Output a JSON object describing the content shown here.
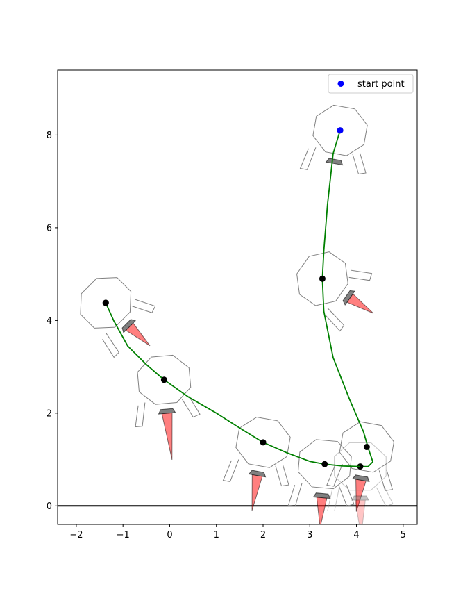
{
  "chart_data": {
    "type": "line",
    "title": "",
    "xlabel": "",
    "ylabel": "",
    "xlim": [
      -2.4,
      5.3
    ],
    "ylim": [
      -0.4,
      9.4
    ],
    "xticks": [
      -2,
      -1,
      0,
      1,
      2,
      3,
      4,
      5
    ],
    "yticks": [
      0,
      2,
      4,
      6,
      8
    ],
    "xtick_labels": [
      "−2",
      "−1",
      "0",
      "1",
      "2",
      "3",
      "4",
      "5"
    ],
    "ytick_labels": [
      "0",
      "2",
      "4",
      "6",
      "8"
    ],
    "grid": false,
    "legend": {
      "placement": "top-right",
      "entries": [
        {
          "label": "start point",
          "color": "#0000ff",
          "marker": "circle"
        }
      ]
    },
    "ground_line": {
      "y": 0,
      "color": "#000000"
    },
    "trajectory_color": "#008000",
    "series": [
      {
        "trajectory": [
          [
            3.65,
            8.1
          ],
          [
            3.5,
            7.6
          ],
          [
            3.38,
            6.5
          ],
          [
            3.3,
            5.5
          ],
          [
            3.27,
            4.9
          ],
          [
            3.3,
            4.2
          ],
          [
            3.5,
            3.2
          ],
          [
            3.85,
            2.3
          ],
          [
            4.15,
            1.6
          ],
          [
            4.25,
            1.25
          ],
          [
            4.35,
            0.95
          ],
          [
            4.25,
            0.85
          ],
          [
            4.08,
            0.85
          ]
        ],
        "start_point": [
          3.65,
          8.1
        ],
        "keyframes": [
          [
            3.65,
            8.1
          ],
          [
            3.27,
            4.9
          ],
          [
            4.22,
            1.27
          ],
          [
            4.08,
            0.85
          ]
        ],
        "start_color": "#0000ff",
        "keyframe_color": "#000000"
      },
      {
        "trajectory": [
          [
            -1.37,
            4.38
          ],
          [
            -1.2,
            4.0
          ],
          [
            -0.9,
            3.45
          ],
          [
            -0.5,
            3.05
          ],
          [
            -0.12,
            2.72
          ],
          [
            0.4,
            2.35
          ],
          [
            1.0,
            2.0
          ],
          [
            1.5,
            1.68
          ],
          [
            2.0,
            1.37
          ],
          [
            2.5,
            1.15
          ],
          [
            3.0,
            0.96
          ],
          [
            3.32,
            0.9
          ],
          [
            3.7,
            0.86
          ],
          [
            4.08,
            0.85
          ]
        ],
        "start_point": [
          -1.37,
          4.38
        ],
        "keyframes": [
          [
            -1.37,
            4.38
          ],
          [
            -0.12,
            2.72
          ],
          [
            2.0,
            1.37
          ],
          [
            3.32,
            0.9
          ]
        ],
        "start_color": "#000000",
        "keyframe_color": "#000000"
      }
    ],
    "robots": [
      {
        "x": 3.65,
        "y": 8.1,
        "angle": 10,
        "thruster": 0,
        "alpha": 1
      },
      {
        "x": 3.27,
        "y": 4.9,
        "angle": -55,
        "thruster": 0.5,
        "alpha": 1
      },
      {
        "x": 4.22,
        "y": 1.27,
        "angle": 10,
        "thruster": 0.6,
        "alpha": 1
      },
      {
        "x": 4.08,
        "y": 0.85,
        "angle": 0,
        "thruster": 0.7,
        "alpha": 0.45
      },
      {
        "x": -1.37,
        "y": 4.38,
        "angle": -45,
        "thruster": 0.5,
        "alpha": 1
      },
      {
        "x": -0.12,
        "y": 2.72,
        "angle": -5,
        "thruster": 1.0,
        "alpha": 1
      },
      {
        "x": 2.0,
        "y": 1.37,
        "angle": 10,
        "thruster": 0.7,
        "alpha": 1
      },
      {
        "x": 3.32,
        "y": 0.9,
        "angle": 5,
        "thruster": 0.55,
        "alpha": 1
      }
    ]
  }
}
